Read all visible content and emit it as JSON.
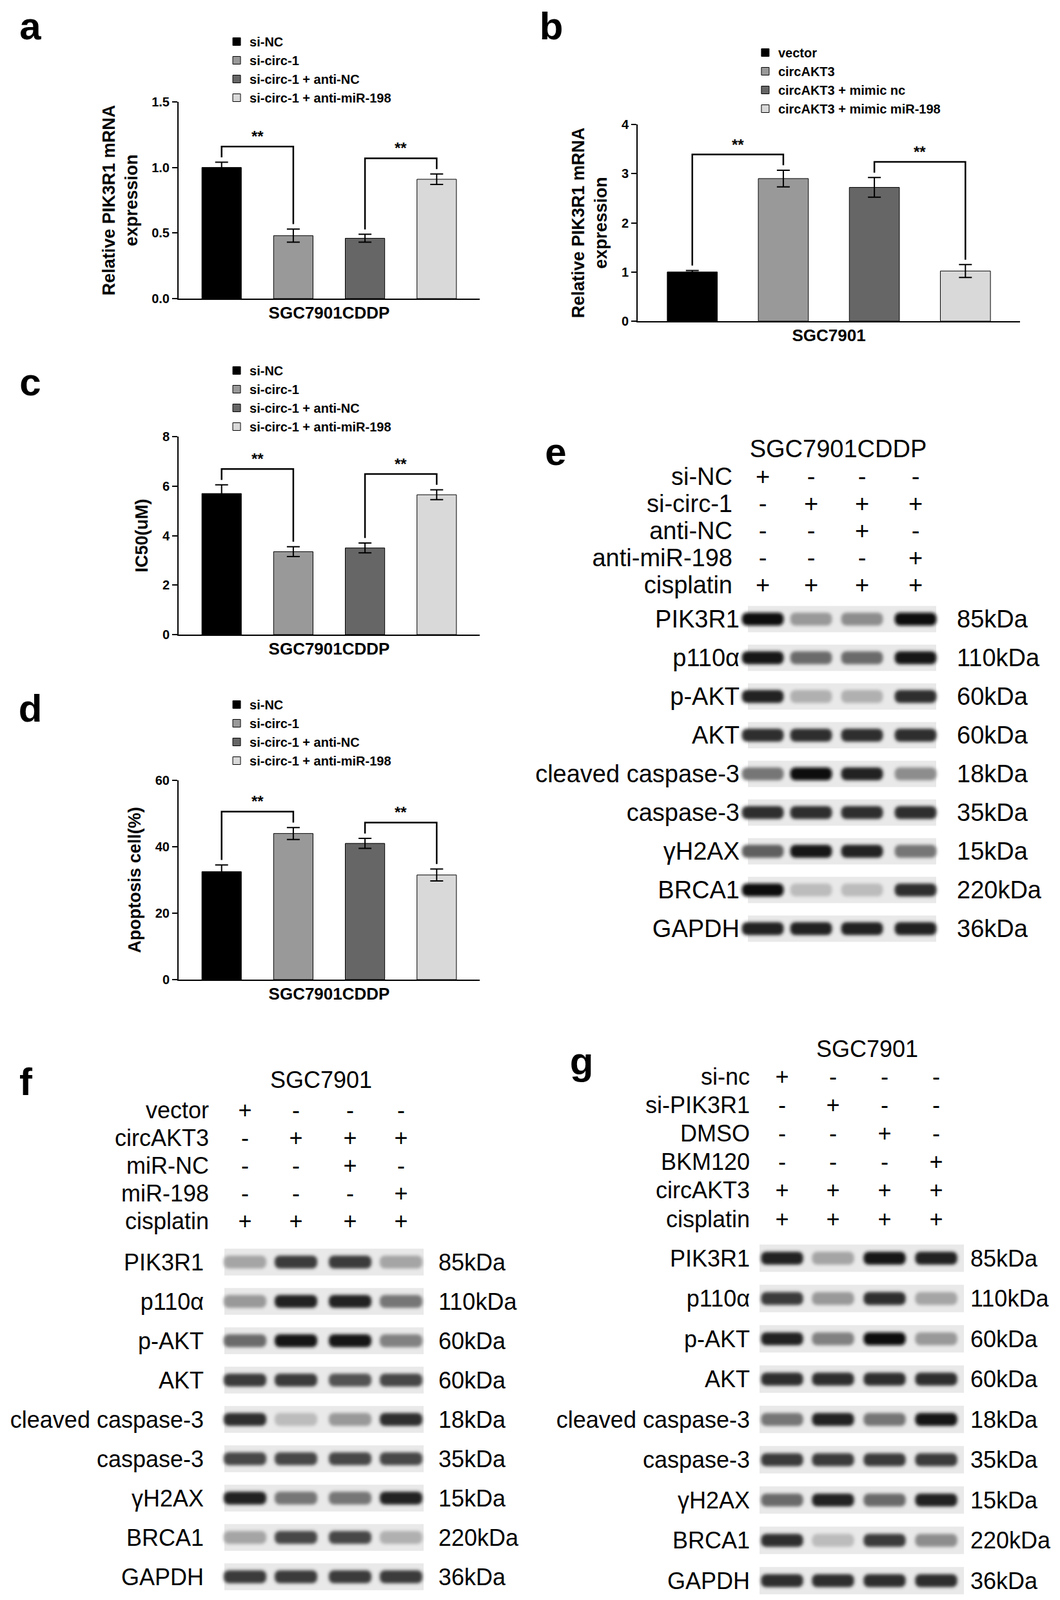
{
  "chart_data": [
    {
      "panel": "a",
      "type": "bar",
      "x_label": "SGC7901CDDP",
      "y_label": "Relative PIK3R1 mRNA\nexpression",
      "series": [
        {
          "name": "si-NC",
          "color": "#000000",
          "values": [
            1.0
          ],
          "error": [
            0.04
          ]
        },
        {
          "name": "si-circ-1",
          "color": "#999999",
          "values": [
            0.48
          ],
          "error": [
            0.05
          ]
        },
        {
          "name": "si-circ-1 + anti-NC",
          "color": "#666666",
          "values": [
            0.46
          ],
          "error": [
            0.03
          ]
        },
        {
          "name": "si-circ-1 + anti-miR-198",
          "color": "#d9d9d9",
          "values": [
            0.91
          ],
          "error": [
            0.04
          ]
        }
      ],
      "ylim": [
        0,
        1.5
      ],
      "yticks": [
        {
          "value": 0,
          "label": "0.0"
        },
        {
          "value": 0.5,
          "label": "0.5"
        },
        {
          "value": 1,
          "label": "1.0"
        },
        {
          "value": 1.5,
          "label": "1.5"
        }
      ],
      "annotations": [
        {
          "text": "**",
          "between": [
            "si-NC",
            "si-circ-1"
          ]
        },
        {
          "text": "**",
          "between": [
            "si-circ-1 + anti-NC",
            "si-circ-1 + anti-miR-198"
          ]
        }
      ],
      "legend": "top",
      "tick_labels": "y",
      "grid": false
    },
    {
      "panel": "b",
      "type": "bar",
      "x_label": "SGC7901",
      "y_label": "Relative PIK3R1 mRNA\nexpression",
      "series": [
        {
          "name": "vector",
          "color": "#000000",
          "values": [
            1.0
          ],
          "error": [
            0.03
          ]
        },
        {
          "name": "circAKT3",
          "color": "#999999",
          "values": [
            2.9
          ],
          "error": [
            0.17
          ]
        },
        {
          "name": "circAKT3 + mimic nc",
          "color": "#666666",
          "values": [
            2.72
          ],
          "error": [
            0.2
          ]
        },
        {
          "name": "circAKT3 + mimic miR-198",
          "color": "#d9d9d9",
          "values": [
            1.02
          ],
          "error": [
            0.13
          ]
        }
      ],
      "ylim": [
        0,
        4
      ],
      "yticks": [
        0,
        1,
        2,
        3,
        4
      ],
      "annotations": [
        {
          "text": "**",
          "between": [
            "vector",
            "circAKT3"
          ]
        },
        {
          "text": "**",
          "between": [
            "circAKT3 + mimic nc",
            "circAKT3 + mimic miR-198"
          ]
        }
      ],
      "legend": "top",
      "tick_labels": "y",
      "grid": false
    },
    {
      "panel": "c",
      "type": "bar",
      "x_label": "SGC7901CDDP",
      "y_label": "IC50(uM)",
      "series": [
        {
          "name": "si-NC",
          "color": "#000000",
          "values": [
            5.7
          ],
          "error": [
            0.35
          ]
        },
        {
          "name": "si-circ-1",
          "color": "#999999",
          "values": [
            3.35
          ],
          "error": [
            0.2
          ]
        },
        {
          "name": "si-circ-1 + anti-NC",
          "color": "#666666",
          "values": [
            3.5
          ],
          "error": [
            0.2
          ]
        },
        {
          "name": "si-circ-1 + anti-miR-198",
          "color": "#d9d9d9",
          "values": [
            5.65
          ],
          "error": [
            0.2
          ]
        }
      ],
      "ylim": [
        0,
        8
      ],
      "yticks": [
        0,
        2,
        4,
        6,
        8
      ],
      "annotations": [
        {
          "text": "**",
          "between": [
            "si-NC",
            "si-circ-1"
          ]
        },
        {
          "text": "**",
          "between": [
            "si-circ-1 + anti-NC",
            "si-circ-1 + anti-miR-198"
          ]
        }
      ],
      "legend": "top",
      "tick_labels": "y",
      "grid": false
    },
    {
      "panel": "d",
      "type": "bar",
      "x_label": "SGC7901CDDP",
      "y_label": "Apoptosis cell(%)",
      "series": [
        {
          "name": "si-NC",
          "color": "#000000",
          "values": [
            32.5
          ],
          "error": [
            2
          ]
        },
        {
          "name": "si-circ-1",
          "color": "#999999",
          "values": [
            44
          ],
          "error": [
            1.8
          ]
        },
        {
          "name": "si-circ-1 + anti-NC",
          "color": "#666666",
          "values": [
            41
          ],
          "error": [
            1.5
          ]
        },
        {
          "name": "si-circ-1 + anti-miR-198",
          "color": "#d9d9d9",
          "values": [
            31.5
          ],
          "error": [
            1.8
          ]
        }
      ],
      "ylim": [
        0,
        60
      ],
      "yticks": [
        0,
        20,
        40,
        60
      ],
      "annotations": [
        {
          "text": "**",
          "between": [
            "si-NC",
            "si-circ-1"
          ]
        },
        {
          "text": "**",
          "between": [
            "si-circ-1 + anti-NC",
            "si-circ-1 + anti-miR-198"
          ]
        }
      ],
      "legend": "top",
      "tick_labels": "y",
      "grid": false
    }
  ],
  "blots": [
    {
      "panel": "e",
      "title": "SGC7901CDDP",
      "conditions": [
        {
          "label": "si-NC",
          "marks": [
            "+",
            "-",
            "-",
            "-"
          ]
        },
        {
          "label": "si-circ-1",
          "marks": [
            "-",
            "+",
            "+",
            "+"
          ]
        },
        {
          "label": "anti-NC",
          "marks": [
            "-",
            "-",
            "+",
            "-"
          ]
        },
        {
          "label": "anti-miR-198",
          "marks": [
            "-",
            "-",
            "-",
            "+"
          ]
        },
        {
          "label": "cisplatin",
          "marks": [
            "+",
            "+",
            "+",
            "+"
          ]
        }
      ],
      "bands": [
        {
          "protein": "PIK3R1",
          "size": "85kDa",
          "intensity": [
            0.95,
            0.35,
            0.4,
            0.95
          ]
        },
        {
          "protein": "p110α",
          "size": "110kDa",
          "intensity": [
            0.9,
            0.55,
            0.55,
            0.9
          ]
        },
        {
          "protein": "p-AKT",
          "size": "60kDa",
          "intensity": [
            0.85,
            0.25,
            0.25,
            0.8
          ]
        },
        {
          "protein": "AKT",
          "size": "60kDa",
          "intensity": [
            0.8,
            0.8,
            0.8,
            0.8
          ]
        },
        {
          "protein": "cleaved caspase-3",
          "size": "18kDa",
          "intensity": [
            0.5,
            0.95,
            0.85,
            0.4
          ]
        },
        {
          "protein": "caspase-3",
          "size": "35kDa",
          "intensity": [
            0.8,
            0.8,
            0.8,
            0.8
          ]
        },
        {
          "protein": "γH2AX",
          "size": "15kDa",
          "intensity": [
            0.6,
            0.9,
            0.85,
            0.5
          ]
        },
        {
          "protein": "BRCA1",
          "size": "220kDa",
          "intensity": [
            0.95,
            0.2,
            0.2,
            0.8
          ]
        },
        {
          "protein": "GAPDH",
          "size": "36kDa",
          "intensity": [
            0.85,
            0.85,
            0.85,
            0.85
          ]
        }
      ]
    },
    {
      "panel": "f",
      "title": "SGC7901",
      "conditions": [
        {
          "label": "vector",
          "marks": [
            "+",
            "-",
            "-",
            "-"
          ]
        },
        {
          "label": "circAKT3",
          "marks": [
            "-",
            "+",
            "+",
            "+"
          ]
        },
        {
          "label": "miR-NC",
          "marks": [
            "-",
            "-",
            "+",
            "-"
          ]
        },
        {
          "label": "miR-198",
          "marks": [
            "-",
            "-",
            "-",
            "+"
          ]
        },
        {
          "label": "cisplatin",
          "marks": [
            "+",
            "+",
            "+",
            "+"
          ]
        }
      ],
      "bands": [
        {
          "protein": "PIK3R1",
          "size": "85kDa",
          "intensity": [
            0.3,
            0.75,
            0.75,
            0.3
          ]
        },
        {
          "protein": "p110α",
          "size": "110kDa",
          "intensity": [
            0.35,
            0.85,
            0.85,
            0.5
          ]
        },
        {
          "protein": "p-AKT",
          "size": "60kDa",
          "intensity": [
            0.55,
            0.9,
            0.9,
            0.45
          ]
        },
        {
          "protein": "AKT",
          "size": "60kDa",
          "intensity": [
            0.75,
            0.75,
            0.65,
            0.7
          ]
        },
        {
          "protein": "cleaved caspase-3",
          "size": "18kDa",
          "intensity": [
            0.8,
            0.2,
            0.35,
            0.8
          ]
        },
        {
          "protein": "caspase-3",
          "size": "35kDa",
          "intensity": [
            0.7,
            0.7,
            0.7,
            0.7
          ]
        },
        {
          "protein": "γH2AX",
          "size": "15kDa",
          "intensity": [
            0.85,
            0.5,
            0.5,
            0.85
          ]
        },
        {
          "protein": "BRCA1",
          "size": "220kDa",
          "intensity": [
            0.3,
            0.7,
            0.7,
            0.25
          ]
        },
        {
          "protein": "GAPDH",
          "size": "36kDa",
          "intensity": [
            0.75,
            0.75,
            0.75,
            0.75
          ]
        }
      ]
    },
    {
      "panel": "g",
      "title": "SGC7901",
      "conditions": [
        {
          "label": "si-nc",
          "marks": [
            "+",
            "-",
            "-",
            "-"
          ]
        },
        {
          "label": "si-PIK3R1",
          "marks": [
            "-",
            "+",
            "-",
            "-"
          ]
        },
        {
          "label": "DMSO",
          "marks": [
            "-",
            "-",
            "+",
            "-"
          ]
        },
        {
          "label": "BKM120",
          "marks": [
            "-",
            "-",
            "-",
            "+"
          ]
        },
        {
          "label": "circAKT3",
          "marks": [
            "+",
            "+",
            "+",
            "+"
          ]
        },
        {
          "label": "cisplatin",
          "marks": [
            "+",
            "+",
            "+",
            "+"
          ]
        }
      ],
      "bands": [
        {
          "protein": "PIK3R1",
          "size": "85kDa",
          "intensity": [
            0.85,
            0.3,
            0.9,
            0.85
          ]
        },
        {
          "protein": "p110α",
          "size": "110kDa",
          "intensity": [
            0.75,
            0.35,
            0.8,
            0.3
          ]
        },
        {
          "protein": "p-AKT",
          "size": "60kDa",
          "intensity": [
            0.85,
            0.45,
            0.95,
            0.35
          ]
        },
        {
          "protein": "AKT",
          "size": "60kDa",
          "intensity": [
            0.8,
            0.8,
            0.8,
            0.8
          ]
        },
        {
          "protein": "cleaved caspase-3",
          "size": "18kDa",
          "intensity": [
            0.5,
            0.85,
            0.5,
            0.9
          ]
        },
        {
          "protein": "caspase-3",
          "size": "35kDa",
          "intensity": [
            0.75,
            0.75,
            0.75,
            0.75
          ]
        },
        {
          "protein": "γH2AX",
          "size": "15kDa",
          "intensity": [
            0.55,
            0.85,
            0.55,
            0.85
          ]
        },
        {
          "protein": "BRCA1",
          "size": "220kDa",
          "intensity": [
            0.8,
            0.2,
            0.75,
            0.4
          ]
        },
        {
          "protein": "GAPDH",
          "size": "36kDa",
          "intensity": [
            0.8,
            0.8,
            0.8,
            0.8
          ]
        }
      ]
    }
  ]
}
